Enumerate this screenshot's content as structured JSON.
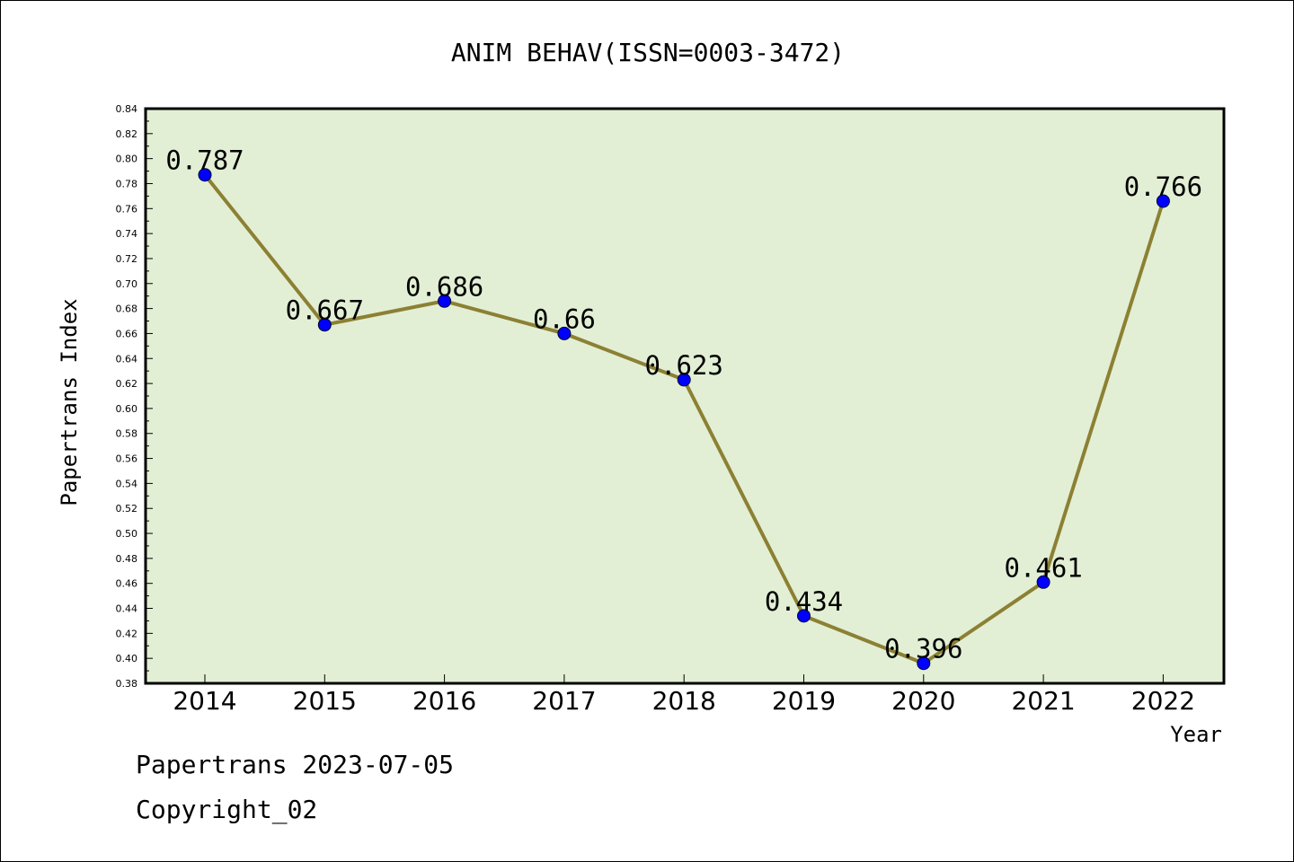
{
  "chart_data": {
    "type": "line",
    "title": "ANIM BEHAV(ISSN=0003-3472)",
    "xlabel": "Year",
    "ylabel": "Papertrans Index",
    "categories": [
      "2014",
      "2015",
      "2016",
      "2017",
      "2018",
      "2019",
      "2020",
      "2021",
      "2022"
    ],
    "series": [
      {
        "values": [
          0.787,
          0.667,
          0.686,
          0.66,
          0.623,
          0.434,
          0.396,
          0.461,
          0.766
        ],
        "labels": [
          "0.787",
          "0.667",
          "0.686",
          "0.66",
          "0.623",
          "0.434",
          "0.396",
          "0.461",
          "0.766"
        ]
      }
    ],
    "ylim": [
      0.38,
      0.84
    ],
    "yticks": [
      "0.38",
      "0.40",
      "0.42",
      "0.44",
      "0.46",
      "0.48",
      "0.50",
      "0.52",
      "0.54",
      "0.56",
      "0.58",
      "0.60",
      "0.62",
      "0.64",
      "0.66",
      "0.68",
      "0.70",
      "0.72",
      "0.74",
      "0.76",
      "0.78",
      "0.80",
      "0.82",
      "0.84"
    ],
    "grid": false,
    "colors": {
      "plot_background": "#e2efd5",
      "line": "#8c8033",
      "marker": "#0000ff"
    }
  },
  "footer": {
    "line1": "Papertrans 2023-07-05",
    "line2": "Copyright_02"
  }
}
